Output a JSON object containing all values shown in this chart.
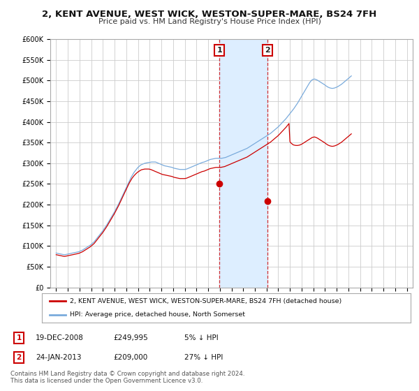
{
  "title": "2, KENT AVENUE, WEST WICK, WESTON-SUPER-MARE, BS24 7FH",
  "subtitle": "Price paid vs. HM Land Registry's House Price Index (HPI)",
  "hpi_color": "#7aabdc",
  "price_color": "#cc0000",
  "background_color": "#ffffff",
  "plot_bg_color": "#ffffff",
  "shaded_region_color": "#ddeeff",
  "grid_color": "#cccccc",
  "ylim": [
    0,
    600000
  ],
  "yticks": [
    0,
    50000,
    100000,
    150000,
    200000,
    250000,
    300000,
    350000,
    400000,
    450000,
    500000,
    550000,
    600000
  ],
  "ytick_labels": [
    "£0",
    "£50K",
    "£100K",
    "£150K",
    "£200K",
    "£250K",
    "£300K",
    "£350K",
    "£400K",
    "£450K",
    "£500K",
    "£550K",
    "£600K"
  ],
  "xlim": [
    1994.5,
    2025.5
  ],
  "sale1_year": 2008.97,
  "sale1_price": 249995,
  "sale2_year": 2013.07,
  "sale2_price": 209000,
  "legend_label_price": "2, KENT AVENUE, WEST WICK, WESTON-SUPER-MARE, BS24 7FH (detached house)",
  "legend_label_hpi": "HPI: Average price, detached house, North Somerset",
  "annotation1_label": "1",
  "annotation2_label": "2",
  "table_rows": [
    [
      "1",
      "19-DEC-2008",
      "£249,995",
      "5% ↓ HPI"
    ],
    [
      "2",
      "24-JAN-2013",
      "£209,000",
      "27% ↓ HPI"
    ]
  ],
  "footer": "Contains HM Land Registry data © Crown copyright and database right 2024.\nThis data is licensed under the Open Government Licence v3.0.",
  "hpi_data_monthly": {
    "start_year": 1995,
    "start_month": 1,
    "values": [
      83000,
      82500,
      82000,
      81500,
      81000,
      80500,
      80000,
      79500,
      79000,
      79000,
      79500,
      80000,
      80500,
      81000,
      81500,
      82000,
      82500,
      83000,
      83500,
      84000,
      84500,
      85000,
      85500,
      86000,
      87000,
      88000,
      89000,
      90000,
      91500,
      93000,
      94500,
      96000,
      97500,
      99000,
      100500,
      102000,
      104000,
      106000,
      108000,
      110000,
      113000,
      116000,
      119000,
      122000,
      125000,
      128000,
      131000,
      134000,
      137000,
      140500,
      144000,
      147500,
      151000,
      155000,
      159000,
      163000,
      167000,
      171000,
      175000,
      179000,
      183000,
      187500,
      192000,
      196500,
      201000,
      206000,
      211000,
      216000,
      221000,
      226000,
      231000,
      236000,
      241000,
      246000,
      251000,
      256000,
      261000,
      266000,
      270000,
      274000,
      278000,
      281000,
      284000,
      287000,
      290000,
      292000,
      294000,
      296000,
      297000,
      298000,
      299000,
      300000,
      300500,
      301000,
      301500,
      302000,
      302000,
      302500,
      303000,
      303000,
      303000,
      303000,
      303000,
      302000,
      301000,
      300000,
      299000,
      298000,
      297000,
      296000,
      295000,
      294000,
      293500,
      293000,
      292500,
      292000,
      291500,
      291000,
      290500,
      290000,
      289000,
      288000,
      287500,
      287000,
      286500,
      286000,
      285500,
      285000,
      285000,
      285000,
      285000,
      285000,
      285000,
      285500,
      286000,
      287000,
      288000,
      289000,
      290000,
      291000,
      292000,
      293000,
      294000,
      295000,
      296000,
      297000,
      298000,
      299000,
      300000,
      301000,
      302000,
      302500,
      303000,
      304000,
      305000,
      306000,
      307000,
      308000,
      309000,
      309500,
      310000,
      310500,
      311000,
      311500,
      312000,
      312000,
      312000,
      312000,
      312000,
      312000,
      312000,
      312500,
      313000,
      313500,
      314000,
      315000,
      316000,
      317000,
      318000,
      319000,
      320000,
      321000,
      322000,
      323000,
      324000,
      325000,
      326000,
      327000,
      328000,
      329000,
      330000,
      331000,
      332000,
      333000,
      334000,
      335000,
      336000,
      337500,
      339000,
      340500,
      342000,
      343500,
      345000,
      346500,
      348000,
      349500,
      351000,
      352500,
      354000,
      355500,
      357000,
      358500,
      360000,
      361500,
      363000,
      364500,
      366000,
      367500,
      369000,
      370500,
      372000,
      374000,
      376000,
      378000,
      380000,
      382000,
      384000,
      386000,
      388000,
      390500,
      393000,
      395500,
      398000,
      400500,
      403000,
      405500,
      408000,
      411000,
      414000,
      417000,
      420000,
      423000,
      426000,
      429000,
      432000,
      435500,
      439000,
      442500,
      446000,
      450000,
      454000,
      458000,
      462000,
      466000,
      470000,
      474000,
      478000,
      482000,
      486000,
      490000,
      494000,
      497000,
      500000,
      502000,
      503000,
      503500,
      503000,
      502000,
      501000,
      499500,
      498000,
      496500,
      495000,
      493500,
      492000,
      490500,
      489000,
      487000,
      485500,
      484000,
      483000,
      482000,
      481500,
      481000,
      481000,
      481500,
      482000,
      483000,
      484000,
      485000,
      486500,
      488000,
      489500,
      491000,
      493000,
      495000,
      497000,
      499000,
      501000,
      503000,
      505000,
      507000,
      509000,
      511000
    ]
  },
  "price_data_monthly": {
    "start_year": 1995,
    "start_month": 1,
    "values": [
      79000,
      78500,
      78000,
      77500,
      77000,
      76500,
      76000,
      75500,
      75000,
      75000,
      75500,
      76000,
      76500,
      77000,
      77500,
      78000,
      78500,
      79000,
      79500,
      80000,
      80500,
      81000,
      81500,
      82000,
      83000,
      84000,
      85000,
      86000,
      87500,
      89000,
      90500,
      92000,
      93500,
      95000,
      96500,
      98000,
      100000,
      102000,
      104000,
      106000,
      109000,
      112000,
      115000,
      118000,
      121000,
      124000,
      127000,
      130000,
      133000,
      136500,
      140000,
      143500,
      147000,
      151000,
      155000,
      159000,
      163000,
      167000,
      171000,
      175000,
      179000,
      183500,
      188000,
      192500,
      197000,
      202000,
      207000,
      212000,
      217000,
      222000,
      227000,
      232000,
      237000,
      242000,
      247000,
      252000,
      256000,
      260000,
      264000,
      267000,
      270000,
      272500,
      275000,
      277000,
      279000,
      280500,
      282000,
      283500,
      284500,
      285000,
      285500,
      286000,
      286000,
      286000,
      286000,
      286000,
      285500,
      285000,
      284000,
      283000,
      282000,
      281000,
      280000,
      279000,
      278000,
      277000,
      276000,
      275000,
      274000,
      273000,
      272500,
      272000,
      271500,
      271000,
      270500,
      270000,
      269500,
      269000,
      268500,
      268000,
      267000,
      266000,
      265500,
      265000,
      264500,
      264000,
      263500,
      263000,
      263000,
      263000,
      263000,
      263000,
      263000,
      263500,
      264000,
      265000,
      266000,
      267000,
      268000,
      269000,
      270000,
      271000,
      272000,
      273000,
      274000,
      275000,
      276000,
      277000,
      278000,
      279000,
      280000,
      280500,
      281000,
      282000,
      283000,
      284000,
      285000,
      286000,
      287000,
      287500,
      288000,
      288500,
      289000,
      289500,
      290000,
      290000,
      290000,
      290000,
      290000,
      290000,
      290500,
      291000,
      291500,
      292000,
      293000,
      294000,
      295000,
      296000,
      297000,
      298000,
      299000,
      300000,
      301000,
      302000,
      303000,
      304000,
      305000,
      306000,
      307000,
      308000,
      309000,
      310000,
      311000,
      312000,
      313000,
      314000,
      315000,
      316500,
      318000,
      319500,
      321000,
      322500,
      324000,
      325500,
      327000,
      328500,
      330000,
      331500,
      333000,
      334500,
      336000,
      337500,
      339000,
      340500,
      342000,
      343500,
      345000,
      346500,
      348000,
      349500,
      351000,
      353000,
      355000,
      357000,
      359000,
      361000,
      363000,
      365000,
      367000,
      369500,
      372000,
      374500,
      377000,
      379500,
      382000,
      384500,
      387000,
      390000,
      393000,
      396000,
      352000,
      349000,
      347000,
      345000,
      344000,
      343500,
      343000,
      343000,
      343000,
      343500,
      344000,
      345000,
      346000,
      347500,
      349000,
      350500,
      352000,
      353500,
      355000,
      356500,
      358000,
      359500,
      361000,
      362500,
      363000,
      363500,
      363000,
      362000,
      361000,
      359500,
      358000,
      356500,
      355000,
      353500,
      352000,
      350500,
      349000,
      347000,
      345500,
      344000,
      343000,
      342000,
      341500,
      341000,
      341000,
      341500,
      342000,
      343000,
      344000,
      345000,
      346500,
      348000,
      349500,
      351000,
      353000,
      355000,
      357000,
      359000,
      361000,
      363000,
      365000,
      367000,
      369000,
      371000
    ]
  }
}
